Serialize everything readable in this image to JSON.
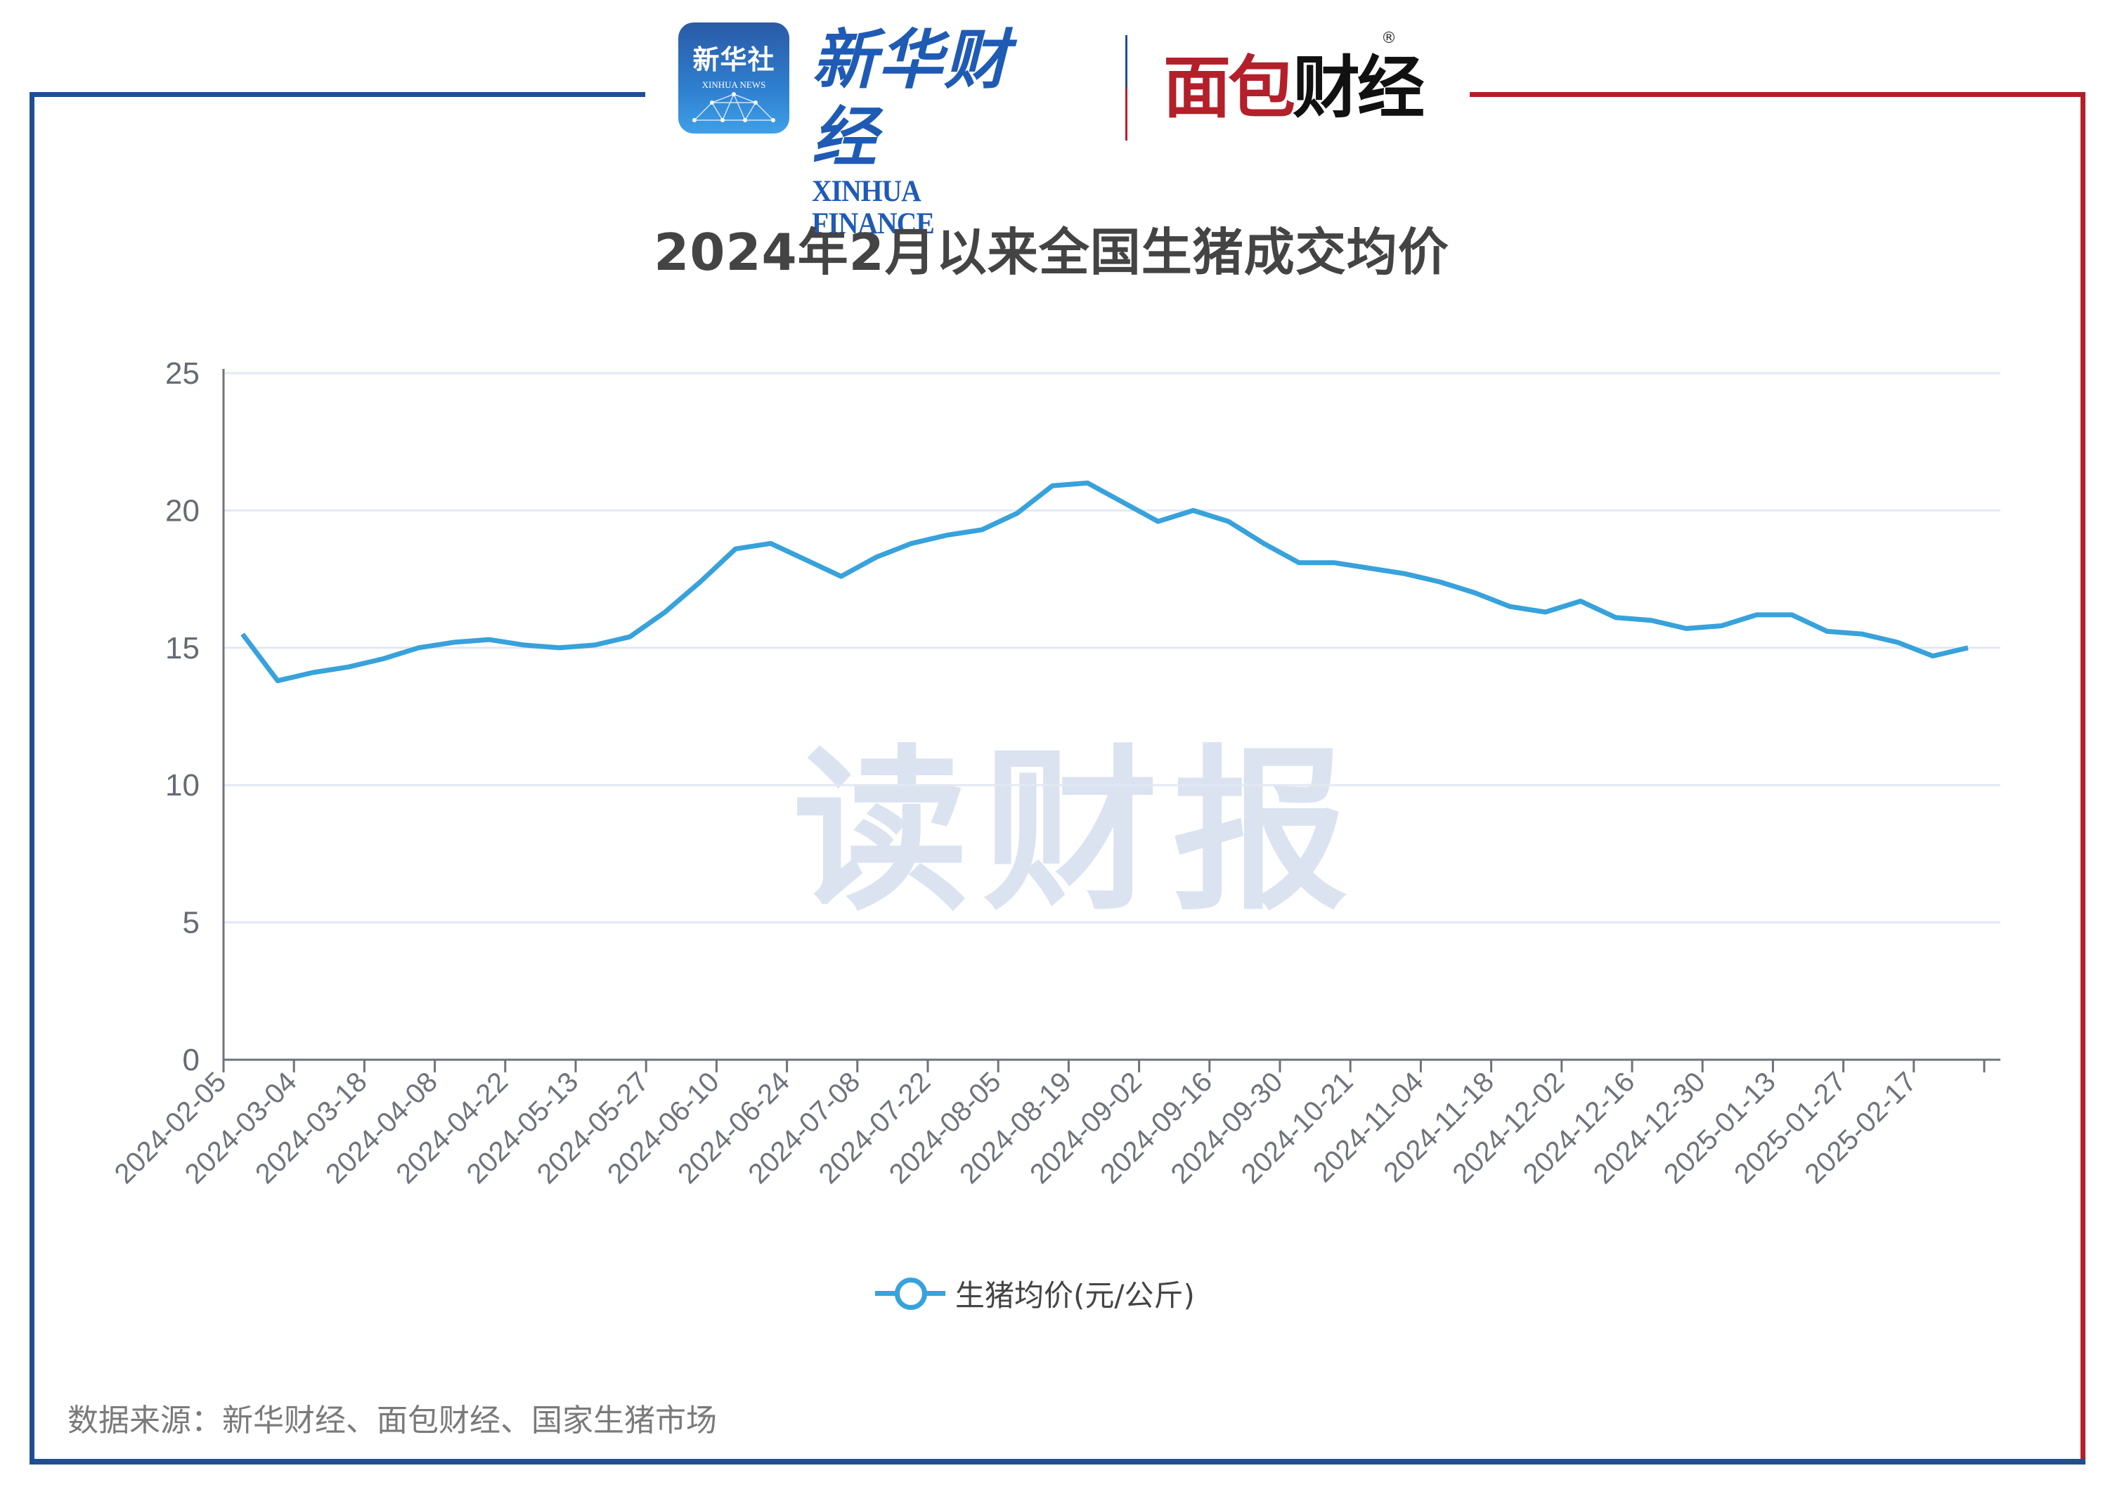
{
  "header": {
    "xinhua_badge_cn": "新华社",
    "xinhua_badge_en": "XINHUA NEWS",
    "xinhua_finance_cn": "新华财经",
    "xinhua_finance_en": "XINHUA FINANCE",
    "mianbao_red": "面包",
    "mianbao_black": "财经",
    "registered_mark": "®"
  },
  "colors": {
    "frame_blue": "#1f4f93",
    "frame_red": "#b51f2a",
    "line": "#37a2db",
    "grid": "#e3e8f2",
    "axis": "#6e737b"
  },
  "watermark": "读财报",
  "legend": {
    "label": "生猪均价(元/公斤)",
    "icon": "line-circle-marker"
  },
  "source": "数据来源：新华财经、面包财经、国家生猪市场",
  "chart_data": {
    "type": "line",
    "title": "2024年2月以来全国生猪成交均价",
    "xlabel": "",
    "ylabel": "",
    "ylim": [
      0,
      25
    ],
    "yticks": [
      0,
      5,
      10,
      15,
      20,
      25
    ],
    "grid": true,
    "legend_position": "bottom",
    "tick_labels": [
      "2024-02-05",
      "2024-03-04",
      "2024-03-18",
      "2024-04-08",
      "2024-04-22",
      "2024-05-13",
      "2024-05-27",
      "2024-06-10",
      "2024-06-24",
      "2024-07-08",
      "2024-07-22",
      "2024-08-05",
      "2024-08-19",
      "2024-09-02",
      "2024-09-16",
      "2024-09-30",
      "2024-10-21",
      "2024-11-04",
      "2024-11-18",
      "2024-12-02",
      "2024-12-16",
      "2024-12-30",
      "2025-01-13",
      "2025-01-27",
      "2025-02-17"
    ],
    "series": [
      {
        "name": "生猪均价(元/公斤)",
        "values": [
          15.5,
          13.8,
          14.1,
          14.3,
          14.6,
          15.0,
          15.2,
          15.3,
          15.1,
          15.0,
          15.1,
          15.4,
          16.3,
          17.4,
          18.6,
          18.8,
          18.2,
          17.6,
          18.3,
          18.8,
          19.1,
          19.3,
          19.9,
          20.9,
          21.0,
          20.3,
          19.6,
          20.0,
          19.6,
          18.8,
          18.1,
          18.1,
          17.9,
          17.7,
          17.4,
          17.0,
          16.5,
          16.3,
          16.7,
          16.1,
          16.0,
          15.7,
          15.8,
          16.2,
          16.2,
          15.6,
          15.5,
          15.2,
          14.7,
          15.0
        ]
      }
    ]
  }
}
